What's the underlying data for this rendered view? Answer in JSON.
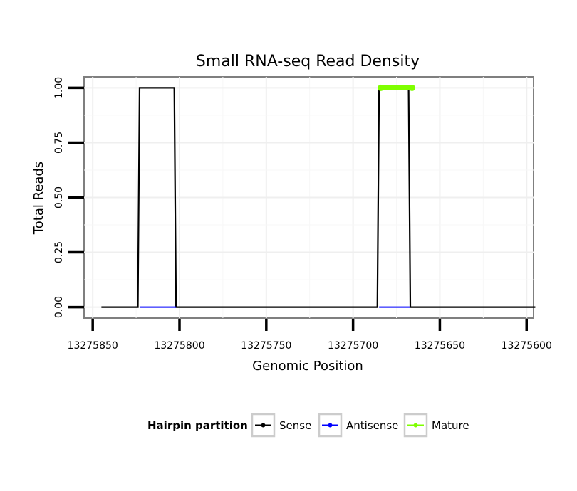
{
  "chart_data": {
    "type": "line",
    "title": "Small RNA-seq Read Density",
    "xlabel": "Genomic Position",
    "ylabel": "Total Reads",
    "x_reversed": true,
    "xlim": [
      13275855,
      13275596
    ],
    "ylim": [
      -0.05,
      1.05
    ],
    "x_ticks": [
      13275850,
      13275800,
      13275750,
      13275700,
      13275650,
      13275600
    ],
    "x_tick_labels": [
      "13275850",
      "13275800",
      "13275750",
      "13275700",
      "13275650",
      "13275600"
    ],
    "y_ticks": [
      0,
      0.25,
      0.5,
      0.75,
      1
    ],
    "y_tick_labels": [
      "0.00",
      "0.25",
      "0.50",
      "0.75",
      "1.00"
    ],
    "grid": true,
    "legend": {
      "title": "Hairpin partition",
      "position": "bottom"
    },
    "series": [
      {
        "name": "Sense",
        "color": "#000000",
        "x": [
          13275845,
          13275824,
          13275823,
          13275803,
          13275802,
          13275686,
          13275685,
          13275668,
          13275667,
          13275595
        ],
        "y": [
          0,
          0,
          1,
          1,
          0,
          0,
          1,
          1,
          0,
          0
        ]
      },
      {
        "name": "Antisense",
        "color": "#0000ff",
        "x": [
          13275823,
          13275802,
          13275685,
          13275667
        ],
        "y": [
          0,
          0,
          0,
          0
        ],
        "segments": [
          [
            0,
            1
          ],
          [
            2,
            3
          ]
        ]
      },
      {
        "name": "Mature",
        "color": "#7fff00",
        "x": [
          13275684,
          13275666
        ],
        "y": [
          1,
          1
        ]
      }
    ]
  }
}
